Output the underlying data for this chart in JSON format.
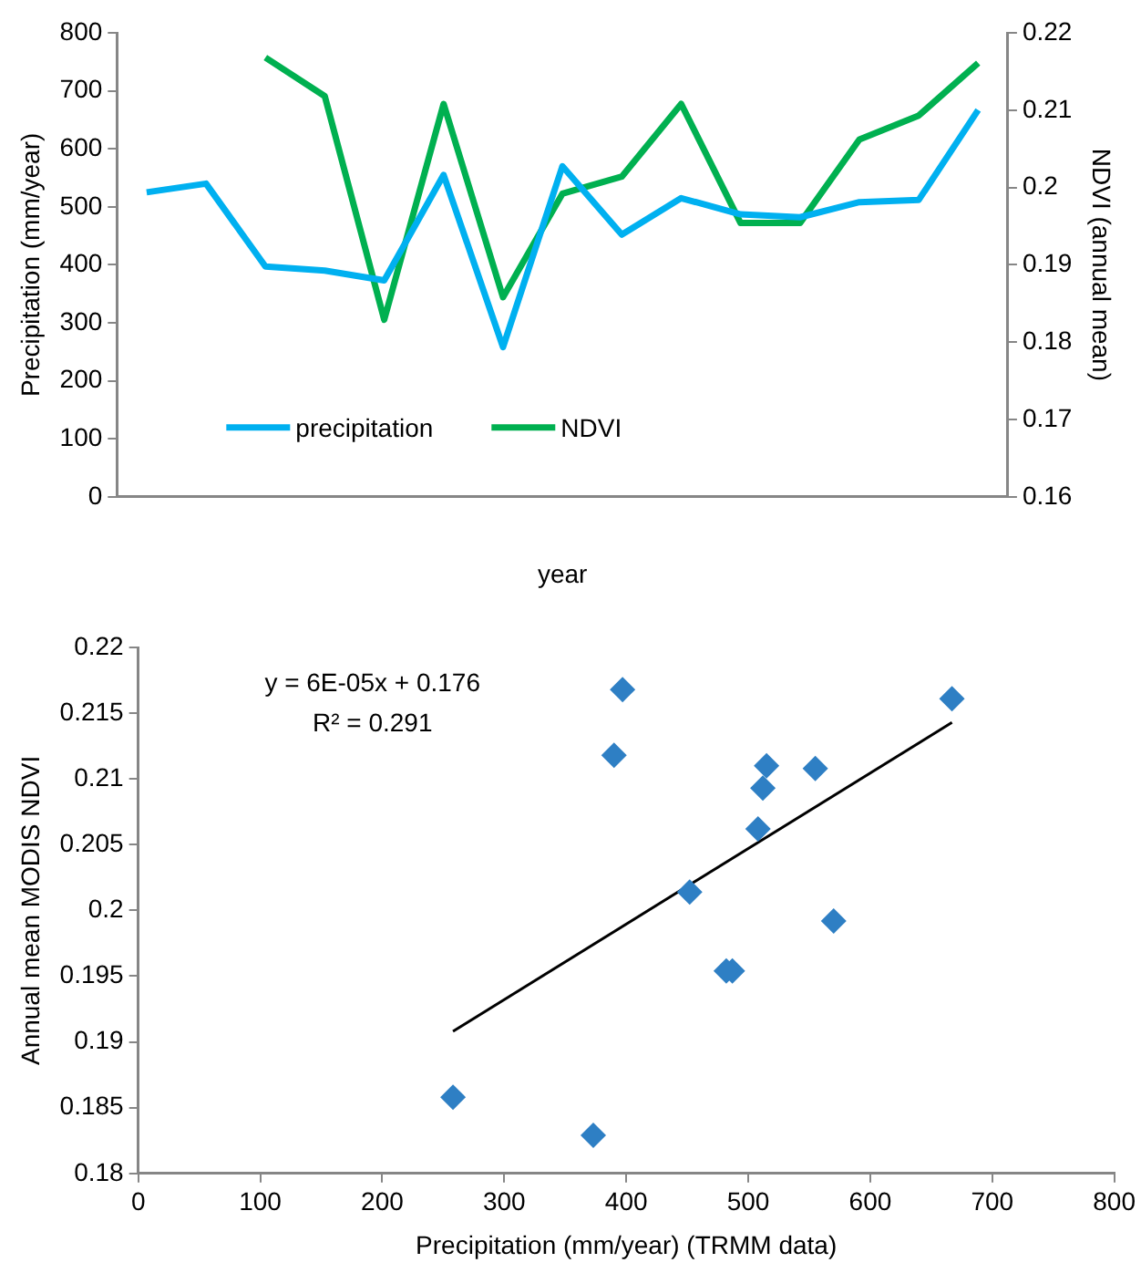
{
  "chart_data": [
    {
      "type": "line",
      "xlabel": "year",
      "ylabel": "Precipitation (mm/year)",
      "y2label": "NDVI (annual mean)",
      "categories": [
        null,
        null,
        null,
        null,
        null,
        null,
        null,
        null,
        null,
        null,
        null,
        null,
        null,
        null,
        null
      ],
      "series": [
        {
          "name": "precipitation",
          "color": "#00b0f0",
          "values": [
            525,
            540,
            397,
            390,
            373,
            555,
            258,
            570,
            452,
            515,
            487,
            482,
            508,
            512,
            667
          ]
        },
        {
          "name": "NDVI",
          "color": "#00b050",
          "axis": "y2",
          "values": [
            null,
            null,
            0.2168,
            0.2118,
            0.1829,
            0.2108,
            0.1858,
            0.1992,
            0.2014,
            0.2108,
            0.1954,
            0.1954,
            0.2062,
            0.2093,
            0.2161
          ]
        }
      ],
      "ylim": [
        0,
        800
      ],
      "yticks": [
        0,
        100,
        200,
        300,
        400,
        500,
        600,
        700,
        800
      ],
      "y2lim": [
        0.16,
        0.22
      ],
      "y2ticks": [
        0.16,
        0.17,
        0.18,
        0.19,
        0.2,
        0.21,
        0.22
      ],
      "legend": "bottom left",
      "grid": false,
      "marker": "none"
    },
    {
      "type": "scatter",
      "xlabel": "Precipitation (mm/year) (TRMM data)",
      "ylabel": "Annual mean MODIS NDVI",
      "series": [
        {
          "type": "scatter",
          "color": "#2e7fc4",
          "marker": "diamond",
          "x": [
            397,
            390,
            373,
            555,
            258,
            570,
            452,
            515,
            487,
            482,
            508,
            512,
            667
          ],
          "values": [
            0.2168,
            0.2118,
            0.1829,
            0.2108,
            0.1858,
            0.1992,
            0.2014,
            0.211,
            0.1954,
            0.1954,
            0.2062,
            0.2093,
            0.2161
          ]
        },
        {
          "type": "line",
          "color": "#000000",
          "marker": "none",
          "x": [
            258,
            667
          ],
          "values": [
            0.1908,
            0.2143
          ]
        }
      ],
      "xlim": [
        0,
        800
      ],
      "xticks": [
        0,
        100,
        200,
        300,
        400,
        500,
        600,
        700,
        800
      ],
      "ylim": [
        0.18,
        0.22
      ],
      "yticks": [
        0.18,
        0.185,
        0.19,
        0.195,
        0.2,
        0.205,
        0.21,
        0.215,
        0.22
      ],
      "annotations": [
        "y = 6E-05x + 0.176",
        "R² = 0.291"
      ],
      "legend": false,
      "grid": false
    }
  ]
}
